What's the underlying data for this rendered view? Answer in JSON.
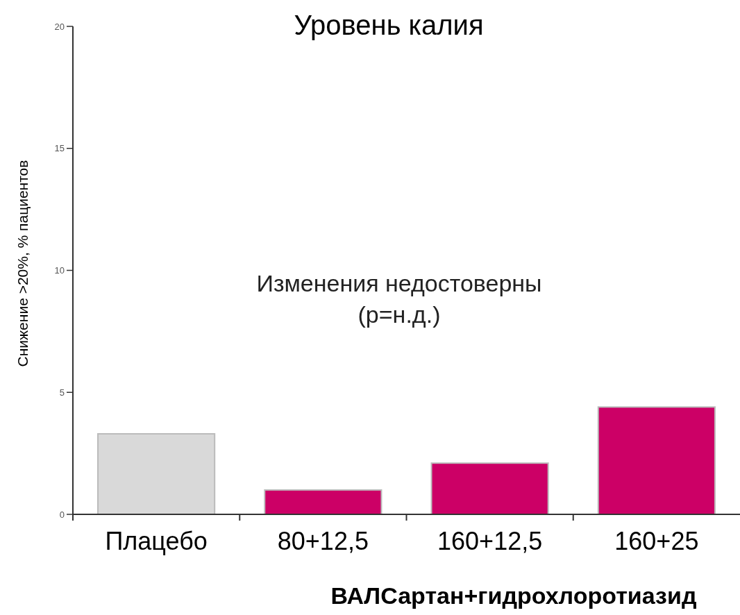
{
  "chart_data": {
    "type": "bar",
    "title": "Уровень калия",
    "ylabel": "Снижение >20%, % пациентов",
    "xlabel": "ВАЛСартан+гидрохлоротиазид",
    "categories": [
      "Плацебо",
      "80+12,5",
      "160+12,5",
      "160+25"
    ],
    "values": [
      3.3,
      1.0,
      2.1,
      4.4
    ],
    "colors": [
      "#d9d9d9",
      "#cc0066",
      "#cc0066",
      "#cc0066"
    ],
    "ylim": [
      0,
      20
    ],
    "yticks": [
      0,
      5,
      10,
      15,
      20
    ],
    "annotations": [
      "Изменения недостоверны\n(p=н.д.)"
    ]
  }
}
